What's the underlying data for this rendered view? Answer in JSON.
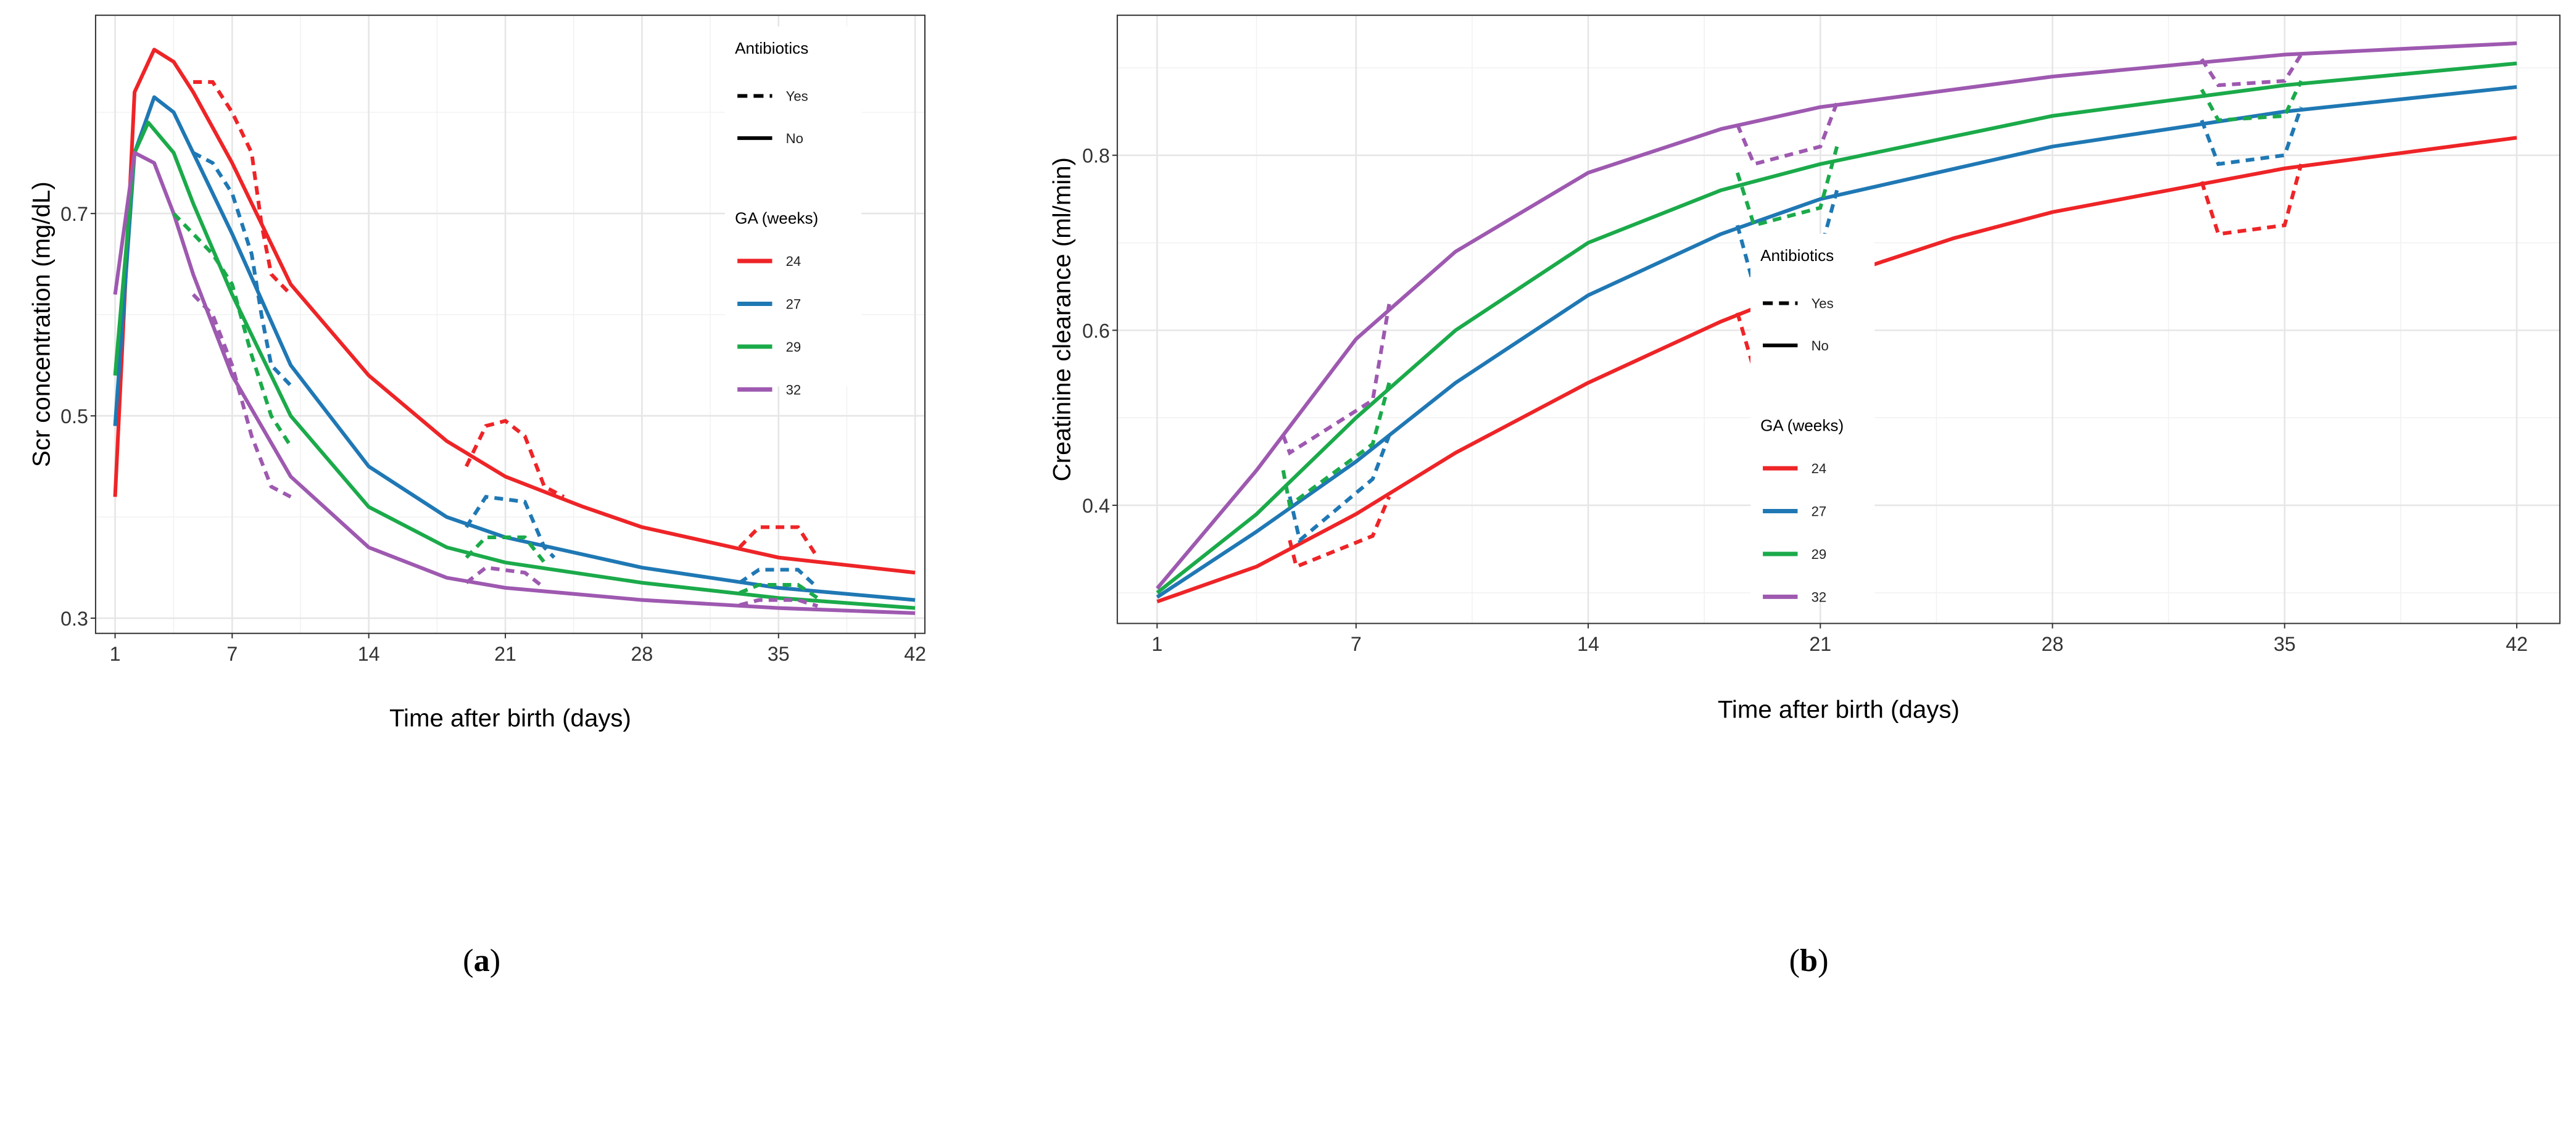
{
  "colors": {
    "24": "#EE2427",
    "27": "#1F78B4",
    "29": "#1BAA4A",
    "32": "#9E59B0"
  },
  "chart_data": [
    {
      "type": "line",
      "caption_letter": "a",
      "xlabel": "Time after birth (days)",
      "ylabel": "Scr concentration (mg/dL)",
      "xlim": [
        0,
        42.5
      ],
      "ylim": [
        0.285,
        0.896
      ],
      "xticks": [
        1,
        7,
        14,
        21,
        28,
        35,
        42
      ],
      "yticks": [
        0.3,
        0.5,
        0.7
      ],
      "ytick_labels": [
        "0.3",
        "0.5",
        "0.7"
      ],
      "legend_placement": "top-right",
      "legend": {
        "antibiotics_title": "Antibiotics",
        "antibiotics": [
          "Yes",
          "No"
        ],
        "ga_title": "GA (weeks)",
        "ga": [
          "24",
          "27",
          "29",
          "32"
        ]
      },
      "series": [
        {
          "name": "24",
          "antibiotics": "No",
          "points": [
            [
              1,
              0.42
            ],
            [
              2,
              0.82
            ],
            [
              3,
              0.862
            ],
            [
              4,
              0.85
            ],
            [
              5,
              0.82
            ],
            [
              7,
              0.75
            ],
            [
              10,
              0.63
            ],
            [
              14,
              0.54
            ],
            [
              18,
              0.475
            ],
            [
              21,
              0.44
            ],
            [
              25,
              0.41
            ],
            [
              28,
              0.39
            ],
            [
              35,
              0.36
            ],
            [
              42,
              0.345
            ]
          ]
        },
        {
          "name": "27",
          "antibiotics": "No",
          "points": [
            [
              1,
              0.49
            ],
            [
              2,
              0.76
            ],
            [
              3,
              0.815
            ],
            [
              4,
              0.8
            ],
            [
              5,
              0.76
            ],
            [
              7,
              0.68
            ],
            [
              10,
              0.55
            ],
            [
              14,
              0.45
            ],
            [
              18,
              0.4
            ],
            [
              21,
              0.38
            ],
            [
              28,
              0.35
            ],
            [
              35,
              0.33
            ],
            [
              42,
              0.318
            ]
          ]
        },
        {
          "name": "29",
          "antibiotics": "No",
          "points": [
            [
              1,
              0.54
            ],
            [
              2,
              0.76
            ],
            [
              2.7,
              0.79
            ],
            [
              4,
              0.76
            ],
            [
              5,
              0.71
            ],
            [
              7,
              0.62
            ],
            [
              10,
              0.5
            ],
            [
              14,
              0.41
            ],
            [
              18,
              0.37
            ],
            [
              21,
              0.355
            ],
            [
              28,
              0.335
            ],
            [
              35,
              0.32
            ],
            [
              42,
              0.31
            ]
          ]
        },
        {
          "name": "32",
          "antibiotics": "No",
          "points": [
            [
              1,
              0.62
            ],
            [
              2,
              0.76
            ],
            [
              3,
              0.75
            ],
            [
              4,
              0.7
            ],
            [
              5,
              0.64
            ],
            [
              7,
              0.54
            ],
            [
              10,
              0.44
            ],
            [
              14,
              0.37
            ],
            [
              18,
              0.34
            ],
            [
              21,
              0.33
            ],
            [
              28,
              0.318
            ],
            [
              35,
              0.31
            ],
            [
              42,
              0.305
            ]
          ]
        },
        {
          "name": "24",
          "antibiotics": "Yes",
          "segments": [
            [
              [
                5,
                0.83
              ],
              [
                6,
                0.83
              ],
              [
                7,
                0.8
              ],
              [
                8,
                0.76
              ],
              [
                8.5,
                0.69
              ],
              [
                9,
                0.64
              ],
              [
                10,
                0.62
              ]
            ],
            [
              [
                19,
                0.45
              ],
              [
                20,
                0.49
              ],
              [
                21,
                0.495
              ],
              [
                22,
                0.48
              ],
              [
                23,
                0.43
              ],
              [
                24,
                0.42
              ]
            ],
            [
              [
                33,
                0.37
              ],
              [
                34,
                0.39
              ],
              [
                36,
                0.39
              ],
              [
                37,
                0.36
              ]
            ]
          ]
        },
        {
          "name": "27",
          "antibiotics": "Yes",
          "segments": [
            [
              [
                5,
                0.76
              ],
              [
                6,
                0.75
              ],
              [
                7,
                0.72
              ],
              [
                8,
                0.66
              ],
              [
                8.5,
                0.6
              ],
              [
                9,
                0.55
              ],
              [
                10,
                0.53
              ]
            ],
            [
              [
                19,
                0.39
              ],
              [
                20,
                0.42
              ],
              [
                22,
                0.415
              ],
              [
                23,
                0.37
              ],
              [
                23.5,
                0.36
              ]
            ],
            [
              [
                33,
                0.335
              ],
              [
                34,
                0.348
              ],
              [
                36,
                0.348
              ],
              [
                37,
                0.33
              ]
            ]
          ]
        },
        {
          "name": "29",
          "antibiotics": "Yes",
          "segments": [
            [
              [
                4,
                0.7
              ],
              [
                6,
                0.66
              ],
              [
                7,
                0.63
              ],
              [
                8,
                0.56
              ],
              [
                9,
                0.5
              ],
              [
                10,
                0.47
              ]
            ],
            [
              [
                19,
                0.36
              ],
              [
                20,
                0.38
              ],
              [
                22,
                0.38
              ],
              [
                23,
                0.355
              ]
            ],
            [
              [
                33,
                0.325
              ],
              [
                34,
                0.333
              ],
              [
                36,
                0.333
              ],
              [
                37,
                0.32
              ]
            ]
          ]
        },
        {
          "name": "32",
          "antibiotics": "Yes",
          "segments": [
            [
              [
                5,
                0.62
              ],
              [
                6,
                0.6
              ],
              [
                7,
                0.55
              ],
              [
                8,
                0.48
              ],
              [
                9,
                0.43
              ],
              [
                10,
                0.42
              ]
            ],
            [
              [
                19,
                0.335
              ],
              [
                20,
                0.35
              ],
              [
                22,
                0.345
              ],
              [
                23,
                0.33
              ]
            ],
            [
              [
                33,
                0.313
              ],
              [
                34,
                0.318
              ],
              [
                36,
                0.318
              ],
              [
                37,
                0.312
              ]
            ]
          ]
        }
      ]
    },
    {
      "type": "line",
      "caption_letter": "b",
      "xlabel": "Time after birth (days)",
      "ylabel": "Creatinine clearance (ml/min)",
      "xlim": [
        -0.2,
        43.3
      ],
      "ylim": [
        0.265,
        0.96
      ],
      "xticks": [
        1,
        7,
        14,
        21,
        28,
        35,
        42
      ],
      "yticks": [
        0.4,
        0.6,
        0.8
      ],
      "ytick_labels": [
        "0.4",
        "0.6",
        "0.8"
      ],
      "legend_placement": "right",
      "legend": {
        "antibiotics_title": "Antibiotics",
        "antibiotics": [
          "Yes",
          "No"
        ],
        "ga_title": "GA (weeks)",
        "ga": [
          "24",
          "27",
          "29",
          "32"
        ]
      },
      "series": [
        {
          "name": "24",
          "antibiotics": "No",
          "points": [
            [
              1,
              0.29
            ],
            [
              4,
              0.33
            ],
            [
              7,
              0.39
            ],
            [
              10,
              0.46
            ],
            [
              14,
              0.54
            ],
            [
              18,
              0.61
            ],
            [
              21,
              0.655
            ],
            [
              25,
              0.705
            ],
            [
              28,
              0.735
            ],
            [
              35,
              0.785
            ],
            [
              42,
              0.82
            ]
          ]
        },
        {
          "name": "27",
          "antibiotics": "No",
          "points": [
            [
              1,
              0.295
            ],
            [
              4,
              0.37
            ],
            [
              7,
              0.45
            ],
            [
              10,
              0.54
            ],
            [
              14,
              0.64
            ],
            [
              18,
              0.71
            ],
            [
              21,
              0.75
            ],
            [
              28,
              0.81
            ],
            [
              35,
              0.85
            ],
            [
              42,
              0.878
            ]
          ]
        },
        {
          "name": "29",
          "antibiotics": "No",
          "points": [
            [
              1,
              0.3
            ],
            [
              4,
              0.39
            ],
            [
              7,
              0.5
            ],
            [
              10,
              0.6
            ],
            [
              14,
              0.7
            ],
            [
              18,
              0.76
            ],
            [
              21,
              0.79
            ],
            [
              28,
              0.845
            ],
            [
              35,
              0.88
            ],
            [
              42,
              0.905
            ]
          ]
        },
        {
          "name": "32",
          "antibiotics": "No",
          "points": [
            [
              1,
              0.305
            ],
            [
              4,
              0.44
            ],
            [
              7,
              0.59
            ],
            [
              10,
              0.69
            ],
            [
              14,
              0.78
            ],
            [
              18,
              0.83
            ],
            [
              21,
              0.855
            ],
            [
              28,
              0.89
            ],
            [
              35,
              0.915
            ],
            [
              42,
              0.928
            ]
          ]
        },
        {
          "name": "24",
          "antibiotics": "Yes",
          "segments": [
            [
              [
                5,
                0.36
              ],
              [
                5.2,
                0.33
              ],
              [
                7.5,
                0.365
              ],
              [
                8,
                0.41
              ]
            ],
            [
              [
                18.5,
                0.62
              ],
              [
                19,
                0.555
              ],
              [
                21,
                0.58
              ],
              [
                21.5,
                0.66
              ]
            ],
            [
              [
                32.5,
                0.77
              ],
              [
                33,
                0.71
              ],
              [
                35,
                0.72
              ],
              [
                35.5,
                0.79
              ]
            ]
          ]
        },
        {
          "name": "27",
          "antibiotics": "Yes",
          "segments": [
            [
              [
                5,
                0.41
              ],
              [
                5.3,
                0.36
              ],
              [
                7.5,
                0.43
              ],
              [
                8,
                0.48
              ]
            ],
            [
              [
                18.5,
                0.72
              ],
              [
                19,
                0.65
              ],
              [
                21,
                0.69
              ],
              [
                21.5,
                0.76
              ]
            ],
            [
              [
                32.5,
                0.84
              ],
              [
                33,
                0.79
              ],
              [
                35,
                0.8
              ],
              [
                35.5,
                0.855
              ]
            ]
          ]
        },
        {
          "name": "29",
          "antibiotics": "Yes",
          "segments": [
            [
              [
                4.8,
                0.44
              ],
              [
                5,
                0.4
              ],
              [
                7.5,
                0.47
              ],
              [
                8,
                0.54
              ]
            ],
            [
              [
                18.5,
                0.78
              ],
              [
                19,
                0.72
              ],
              [
                21,
                0.74
              ],
              [
                21.5,
                0.81
              ]
            ],
            [
              [
                32.5,
                0.875
              ],
              [
                33,
                0.84
              ],
              [
                35,
                0.845
              ],
              [
                35.5,
                0.885
              ]
            ]
          ]
        },
        {
          "name": "32",
          "antibiotics": "Yes",
          "segments": [
            [
              [
                4.8,
                0.48
              ],
              [
                5,
                0.46
              ],
              [
                7.5,
                0.52
              ],
              [
                8,
                0.63
              ]
            ],
            [
              [
                18.5,
                0.835
              ],
              [
                19,
                0.79
              ],
              [
                21,
                0.81
              ],
              [
                21.5,
                0.86
              ]
            ],
            [
              [
                32.5,
                0.91
              ],
              [
                33,
                0.88
              ],
              [
                35,
                0.885
              ],
              [
                35.5,
                0.915
              ]
            ]
          ]
        }
      ]
    }
  ]
}
